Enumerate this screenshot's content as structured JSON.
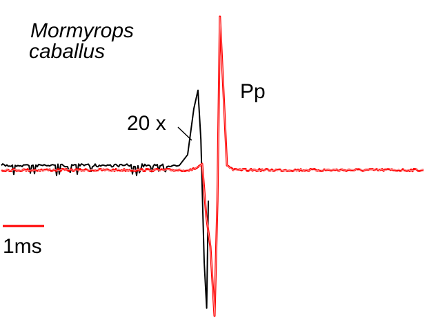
{
  "labels": {
    "species_line1": "Mormyrops",
    "species_line2": "caballus",
    "waveform": "Pp",
    "gain": "20 x",
    "scale_bar": "1ms"
  },
  "colors": {
    "amplified_trace": "#000000",
    "normal_trace": "#ff0000",
    "scale_bar": "#ff0000",
    "text": "#000000"
  },
  "chart_data": {
    "type": "line",
    "title": "",
    "xlabel": "",
    "ylabel": "",
    "series": [
      {
        "name": "Pp",
        "color": "#ff0000",
        "trace": "normal gain",
        "x": [
          0.0,
          4.6,
          4.75,
          4.85,
          4.95,
          5.05,
          5.15,
          5.22,
          5.28,
          5.35,
          5.45,
          5.6,
          6.0,
          10.2
        ],
        "y": [
          0.0,
          0.0,
          0.02,
          0.04,
          -0.3,
          -0.5,
          -0.95,
          -0.2,
          1.0,
          0.6,
          0.03,
          0.0,
          0.0,
          0.0
        ]
      },
      {
        "name": "20 x",
        "color": "#000000",
        "trace": "20x amplified",
        "x": [
          0.0,
          4.3,
          4.5,
          4.65,
          4.75,
          4.82,
          4.9,
          4.96,
          5.0
        ],
        "y": [
          0.03,
          0.03,
          0.1,
          0.4,
          0.52,
          0.2,
          -0.6,
          -0.9,
          -0.2
        ]
      }
    ],
    "scale_bar": {
      "label": "1ms",
      "length_ms": 1.0
    },
    "xlim": [
      0.0,
      10.2
    ],
    "ylim": [
      -1.0,
      1.1
    ],
    "grid": false,
    "legend": "none"
  }
}
